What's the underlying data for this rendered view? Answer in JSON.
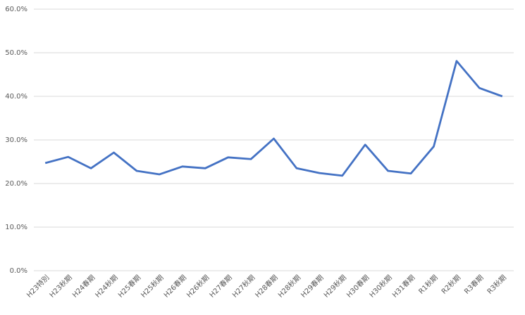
{
  "chart_data": {
    "type": "line",
    "categories": [
      "H23特別",
      "H23秋期",
      "H24春期",
      "H24秋期",
      "H25春期",
      "H25秋期",
      "H26春期",
      "H26秋期",
      "H27春期",
      "H27秋期",
      "H28春期",
      "H28秋期",
      "H29春期",
      "H29秋期",
      "H30春期",
      "H30秋期",
      "H31春期",
      "R1秋期",
      "R2秋期",
      "R3春期",
      "R3秋期"
    ],
    "series": [
      {
        "color": "#4472c4",
        "values": [
          24.7,
          26.1,
          23.5,
          27.1,
          22.9,
          22.1,
          23.9,
          23.5,
          26.0,
          25.6,
          30.3,
          23.5,
          22.4,
          21.8,
          28.9,
          22.9,
          22.3,
          28.5,
          48.1,
          41.9,
          40.0
        ]
      }
    ],
    "ylim": [
      0,
      60
    ],
    "yticks": [
      {
        "value": 0,
        "label": "0.0%"
      },
      {
        "value": 10,
        "label": "10.0%"
      },
      {
        "value": 20,
        "label": "20.0%"
      },
      {
        "value": 30,
        "label": "30.0%"
      },
      {
        "value": 40,
        "label": "40.0%"
      },
      {
        "value": 50,
        "label": "50.0%"
      },
      {
        "value": 60,
        "label": "60.0%"
      }
    ],
    "grid": true
  }
}
